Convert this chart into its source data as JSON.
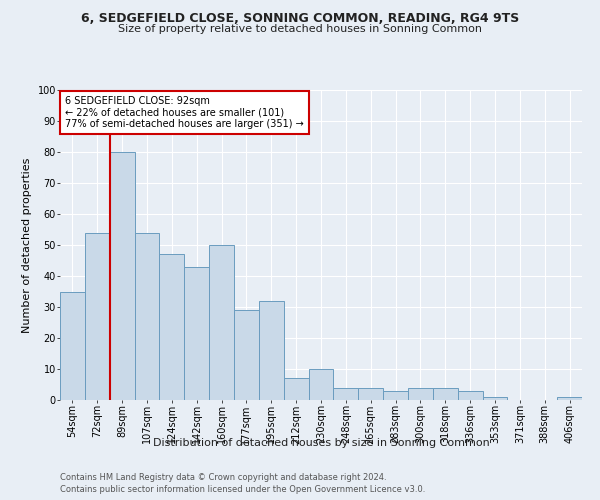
{
  "title1": "6, SEDGEFIELD CLOSE, SONNING COMMON, READING, RG4 9TS",
  "title2": "Size of property relative to detached houses in Sonning Common",
  "xlabel": "Distribution of detached houses by size in Sonning Common",
  "ylabel": "Number of detached properties",
  "footnote1": "Contains HM Land Registry data © Crown copyright and database right 2024.",
  "footnote2": "Contains public sector information licensed under the Open Government Licence v3.0.",
  "categories": [
    "54sqm",
    "72sqm",
    "89sqm",
    "107sqm",
    "124sqm",
    "142sqm",
    "160sqm",
    "177sqm",
    "195sqm",
    "212sqm",
    "230sqm",
    "248sqm",
    "265sqm",
    "283sqm",
    "300sqm",
    "318sqm",
    "336sqm",
    "353sqm",
    "371sqm",
    "388sqm",
    "406sqm"
  ],
  "values": [
    35,
    54,
    80,
    54,
    47,
    43,
    50,
    29,
    32,
    7,
    10,
    4,
    4,
    3,
    4,
    4,
    3,
    1,
    0,
    0,
    1
  ],
  "bar_color": "#c9d9e8",
  "bar_edge_color": "#6a9cbf",
  "property_line_color": "#cc0000",
  "annotation_line1": "6 SEDGEFIELD CLOSE: 92sqm",
  "annotation_line2": "← 22% of detached houses are smaller (101)",
  "annotation_line3": "77% of semi-detached houses are larger (351) →",
  "annotation_box_color": "#cc0000",
  "ylim": [
    0,
    100
  ],
  "yticks": [
    0,
    10,
    20,
    30,
    40,
    50,
    60,
    70,
    80,
    90,
    100
  ],
  "bg_color": "#e8eef5",
  "plot_bg_color": "#e8eef5",
  "grid_color": "#ffffff",
  "title1_fontsize": 9,
  "title2_fontsize": 8,
  "ylabel_fontsize": 8,
  "xlabel_fontsize": 8,
  "tick_fontsize": 7,
  "footnote_fontsize": 6
}
